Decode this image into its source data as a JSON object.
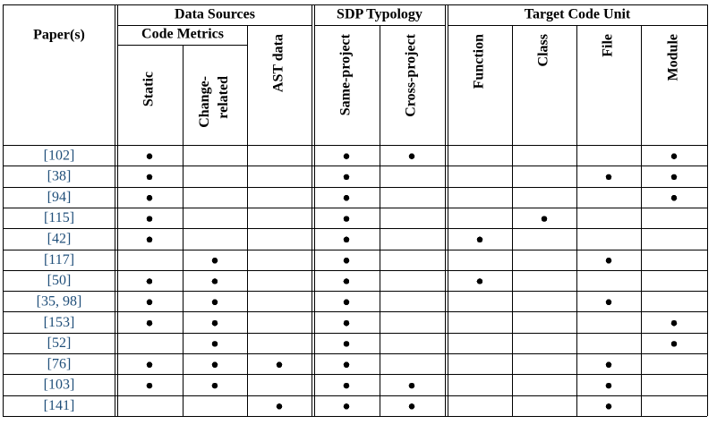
{
  "header": {
    "paper": "Paper(s)",
    "groups": [
      "Data Sources",
      "SDP Typology",
      "Target Code Unit"
    ],
    "subgroup": "Code Metrics",
    "columns": [
      [
        "Static"
      ],
      [
        "Change-",
        "related"
      ],
      [
        "AST data"
      ],
      [
        "Same-project"
      ],
      [
        "Cross-project"
      ],
      [
        "Function"
      ],
      [
        "Class"
      ],
      [
        "File"
      ],
      [
        "Module"
      ]
    ]
  },
  "table": {
    "rows": [
      {
        "paper": "[102]",
        "marks": [
          true,
          false,
          false,
          true,
          true,
          false,
          false,
          false,
          true
        ]
      },
      {
        "paper": "[38]",
        "marks": [
          true,
          false,
          false,
          true,
          false,
          false,
          false,
          true,
          true
        ]
      },
      {
        "paper": "[94]",
        "marks": [
          true,
          false,
          false,
          true,
          false,
          false,
          false,
          false,
          true
        ]
      },
      {
        "paper": "[115]",
        "marks": [
          true,
          false,
          false,
          true,
          false,
          false,
          true,
          false,
          false
        ]
      },
      {
        "paper": "[42]",
        "marks": [
          true,
          false,
          false,
          true,
          false,
          true,
          false,
          false,
          false
        ]
      },
      {
        "paper": "[117]",
        "marks": [
          false,
          true,
          false,
          true,
          false,
          false,
          false,
          true,
          false
        ]
      },
      {
        "paper": "[50]",
        "marks": [
          true,
          true,
          false,
          true,
          false,
          true,
          false,
          false,
          false
        ]
      },
      {
        "paper": "[35, 98]",
        "marks": [
          true,
          true,
          false,
          true,
          false,
          false,
          false,
          true,
          false
        ]
      },
      {
        "paper": "[153]",
        "marks": [
          true,
          true,
          false,
          true,
          false,
          false,
          false,
          false,
          true
        ]
      },
      {
        "paper": "[52]",
        "marks": [
          false,
          true,
          false,
          true,
          false,
          false,
          false,
          false,
          true
        ]
      },
      {
        "paper": "[76]",
        "marks": [
          true,
          true,
          true,
          true,
          false,
          false,
          false,
          true,
          false
        ]
      },
      {
        "paper": "[103]",
        "marks": [
          true,
          true,
          false,
          true,
          true,
          false,
          false,
          true,
          false
        ]
      },
      {
        "paper": "[141]",
        "marks": [
          false,
          false,
          true,
          true,
          true,
          false,
          false,
          true,
          false
        ]
      }
    ]
  }
}
